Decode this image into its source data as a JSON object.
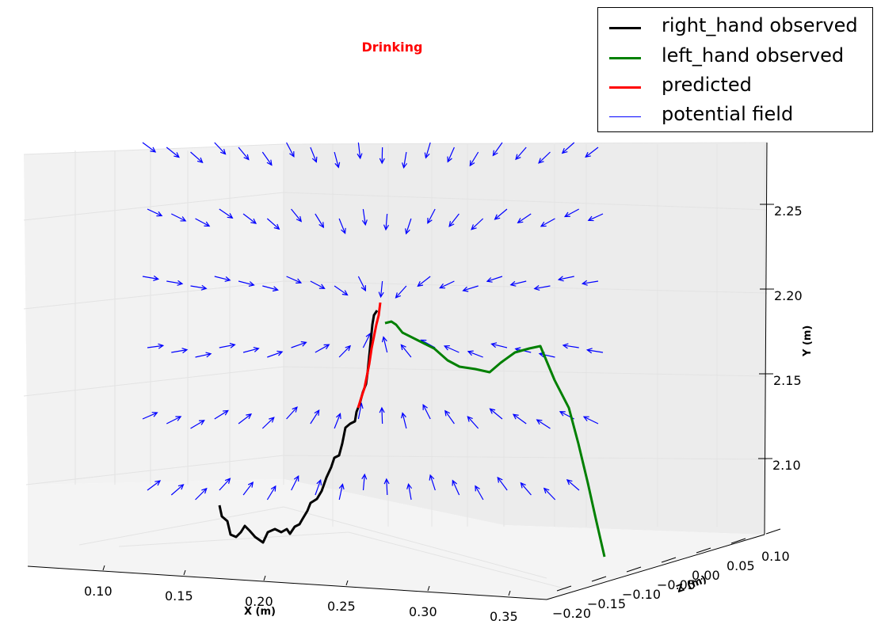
{
  "chart_data": {
    "type": "line",
    "title": "Drinking",
    "xlabel": "X (m)",
    "ylabel": "Y (m)",
    "zlabel": "Z (m)",
    "x_ticks": [
      "0.10",
      "0.15",
      "0.20",
      "0.25",
      "0.30",
      "0.35"
    ],
    "y_ticks": [
      "2.10",
      "2.15",
      "2.20",
      "2.25"
    ],
    "z_ticks": [
      "−0.20",
      "−0.15",
      "−0.10",
      "−0.05",
      "0.00",
      "0.05",
      "0.10"
    ],
    "grid": true,
    "legend_position": "top-right",
    "series": [
      {
        "name": "right_hand observed",
        "color": "#000000"
      },
      {
        "name": "left_hand observed",
        "color": "#008000"
      },
      {
        "name": "predicted",
        "color": "#ff0000"
      },
      {
        "name": "potential field",
        "color": "#0000ff"
      }
    ]
  }
}
